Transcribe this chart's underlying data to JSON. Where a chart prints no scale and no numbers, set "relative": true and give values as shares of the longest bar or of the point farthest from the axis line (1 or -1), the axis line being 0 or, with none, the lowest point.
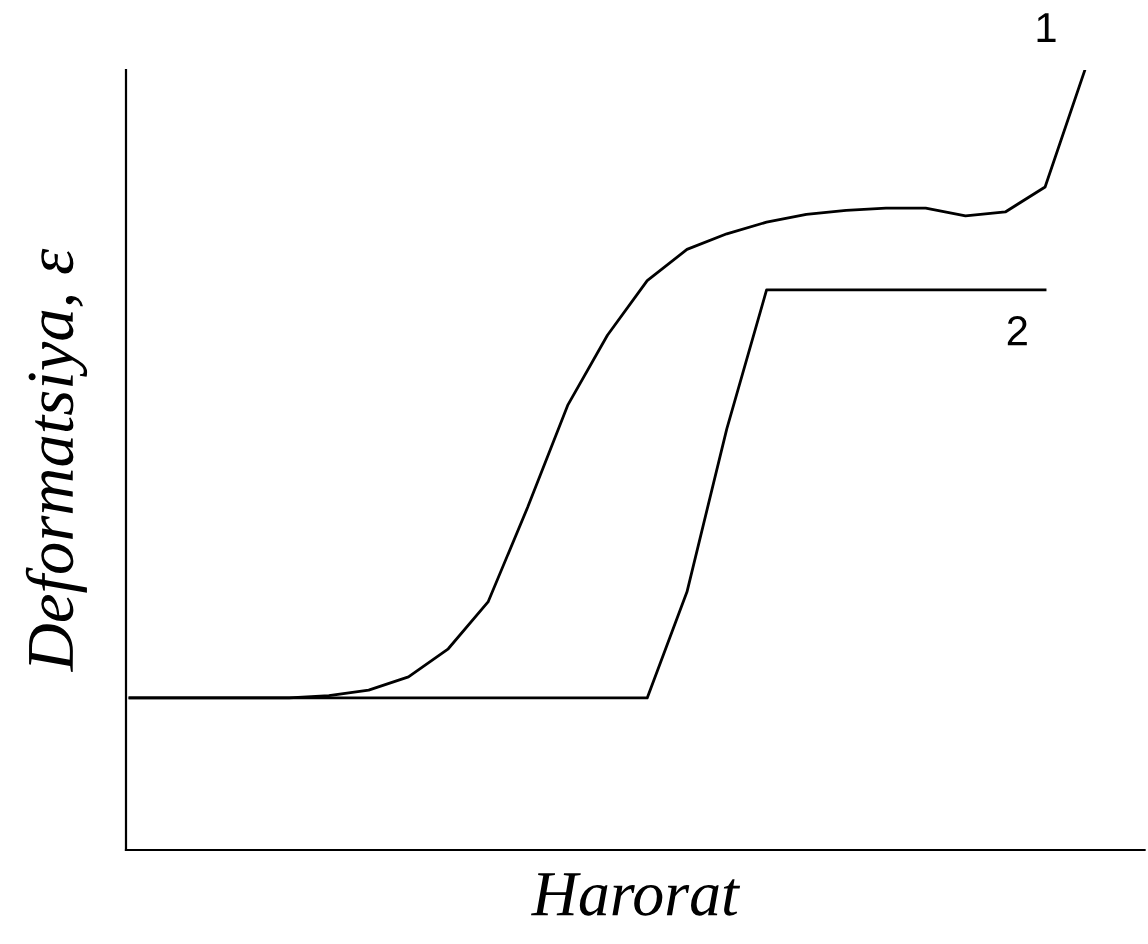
{
  "chart_data": {
    "type": "line",
    "relative": true,
    "xlabel": "Harorat",
    "ylabel": "Deformatsiya, ε",
    "legend": false,
    "marker": "none",
    "line_style": "solid",
    "categories": [
      null,
      null,
      null,
      null,
      null,
      null,
      null,
      null,
      null,
      null,
      null,
      null,
      null,
      null,
      null,
      null,
      null,
      null,
      null,
      null,
      null,
      null,
      null,
      null,
      null
    ],
    "series": [
      {
        "name": "1",
        "color": "#000000",
        "values": [
          0.195,
          0.195,
          0.195,
          0.195,
          0.195,
          0.198,
          0.205,
          0.222,
          0.258,
          0.318,
          0.44,
          0.57,
          0.66,
          0.73,
          0.77,
          0.79,
          0.805,
          0.815,
          0.82,
          0.823,
          0.823,
          0.813,
          0.818,
          0.85,
          1.0
        ]
      },
      {
        "name": "2",
        "color": "#000000",
        "values": [
          0.195,
          0.195,
          0.195,
          0.195,
          0.195,
          0.195,
          0.195,
          0.195,
          0.195,
          0.195,
          0.195,
          0.195,
          0.195,
          0.195,
          0.331,
          0.54,
          0.718,
          0.718,
          0.718,
          0.718,
          0.718,
          0.718,
          0.718,
          0.718,
          null
        ]
      }
    ]
  }
}
